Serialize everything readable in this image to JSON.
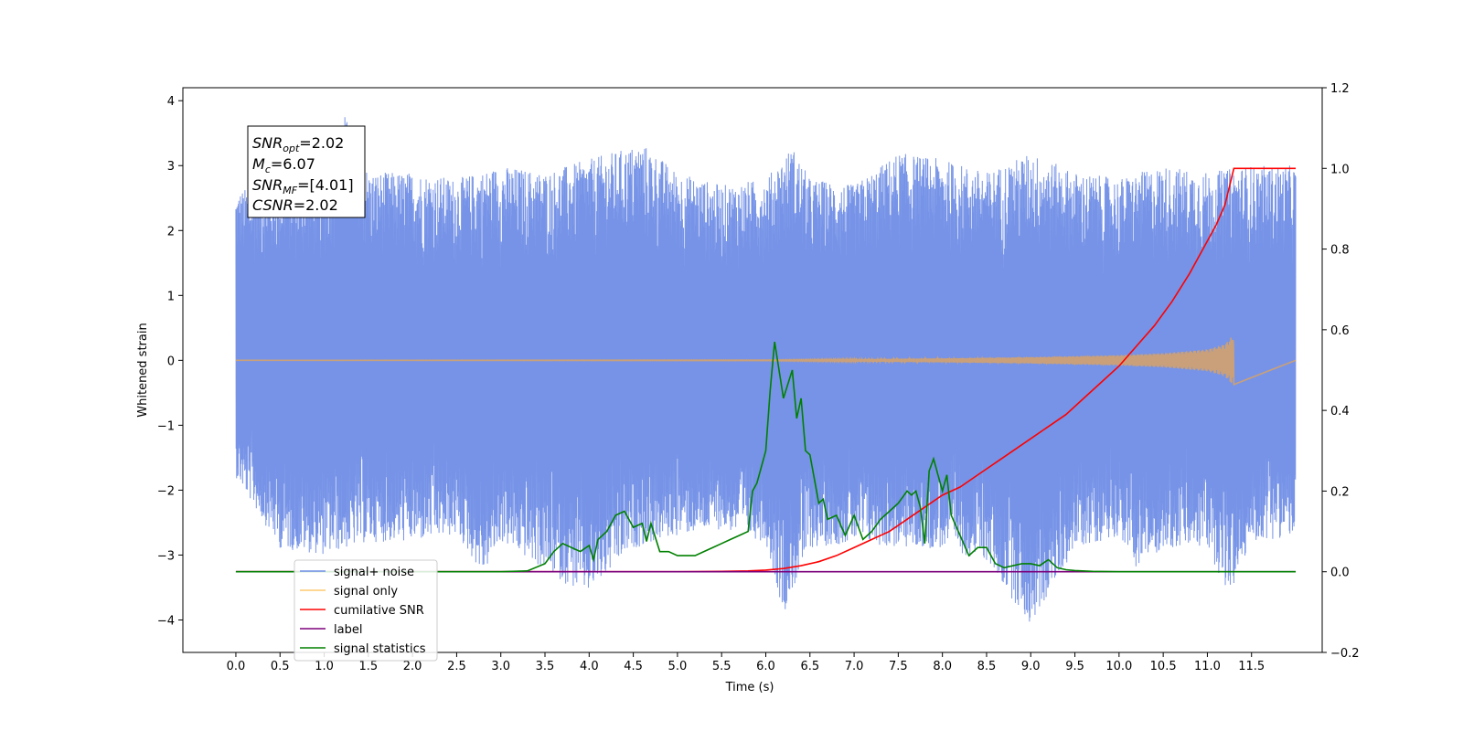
{
  "chart_data": {
    "type": "line",
    "xlabel": "Time (s)",
    "ylabel": "Whitened strain",
    "xlim": [
      -0.6,
      12.3
    ],
    "ylim": [
      -4.5,
      4.2
    ],
    "y2lim": [
      -0.2,
      1.2
    ],
    "xticks": [
      "0.0",
      "0.5",
      "1.0",
      "1.5",
      "2.0",
      "2.5",
      "3.0",
      "3.5",
      "4.0",
      "4.5",
      "5.0",
      "5.5",
      "6.0",
      "6.5",
      "7.0",
      "7.5",
      "8.0",
      "8.5",
      "9.0",
      "9.5",
      "10.0",
      "10.5",
      "11.0",
      "11.5"
    ],
    "yticks": [
      "4",
      "3",
      "2",
      "1",
      "0",
      "−1",
      "−2",
      "−3",
      "−4"
    ],
    "y2ticks": [
      "1.2",
      "1.0",
      "0.8",
      "0.6",
      "0.4",
      "0.2",
      "0.0",
      "−0.2"
    ],
    "annotation": {
      "snr_opt_base": "SNR",
      "snr_opt_sub": "opt",
      "snr_opt_value": "=2.02",
      "mc_base": "M",
      "mc_sub": "c",
      "mc_value": "=6.07",
      "snr_mf_base": "SNR",
      "snr_mf_sub": "MF",
      "snr_mf_value": "=[4.01]",
      "csnr_label": "CSNR",
      "csnr_value": "=2.02"
    },
    "legend": {
      "placement": "lower-left",
      "entries": [
        {
          "label": "signal+ noise",
          "color": "#6f8de6"
        },
        {
          "label": "signal only",
          "color": "#ffc870"
        },
        {
          "label": "cumilative SNR",
          "color": "#ff0000"
        },
        {
          "label": "label",
          "color": "#7b007b"
        },
        {
          "label": "signal statistics",
          "color": "#008000"
        }
      ]
    },
    "series": [
      {
        "name": "signal+ noise",
        "color": "#6f8de6",
        "axis": "left",
        "x_range": [
          0.0,
          12.0
        ],
        "envelope_max": [
          [
            0.0,
            2.6
          ],
          [
            0.5,
            2.8
          ],
          [
            1.0,
            2.9
          ],
          [
            1.23,
            3.8
          ],
          [
            1.5,
            2.9
          ],
          [
            2.0,
            2.9
          ],
          [
            2.5,
            2.8
          ],
          [
            3.0,
            3.0
          ],
          [
            3.5,
            2.9
          ],
          [
            4.0,
            3.1
          ],
          [
            4.5,
            3.3
          ],
          [
            4.6,
            3.35
          ],
          [
            5.0,
            2.9
          ],
          [
            5.5,
            2.7
          ],
          [
            6.0,
            2.8
          ],
          [
            6.3,
            3.3
          ],
          [
            6.5,
            2.8
          ],
          [
            7.0,
            2.7
          ],
          [
            7.5,
            3.2
          ],
          [
            8.0,
            3.1
          ],
          [
            8.5,
            2.9
          ],
          [
            9.0,
            3.2
          ],
          [
            9.5,
            2.9
          ],
          [
            10.0,
            2.8
          ],
          [
            10.5,
            3.0
          ],
          [
            11.0,
            2.9
          ],
          [
            11.5,
            3.0
          ],
          [
            12.0,
            3.0
          ]
        ],
        "envelope_min": [
          [
            0.0,
            -1.8
          ],
          [
            0.5,
            -2.9
          ],
          [
            1.0,
            -3.0
          ],
          [
            1.5,
            -2.8
          ],
          [
            2.0,
            -2.8
          ],
          [
            2.5,
            -2.7
          ],
          [
            2.8,
            -3.3
          ],
          [
            3.0,
            -2.8
          ],
          [
            3.8,
            -3.5
          ],
          [
            4.0,
            -3.6
          ],
          [
            4.5,
            -2.9
          ],
          [
            5.0,
            -2.7
          ],
          [
            5.5,
            -2.6
          ],
          [
            6.0,
            -2.8
          ],
          [
            6.2,
            -3.9
          ],
          [
            6.5,
            -2.9
          ],
          [
            7.0,
            -2.8
          ],
          [
            7.5,
            -2.9
          ],
          [
            8.0,
            -2.9
          ],
          [
            8.5,
            -3.1
          ],
          [
            9.0,
            -4.1
          ],
          [
            9.5,
            -2.9
          ],
          [
            10.0,
            -2.7
          ],
          [
            10.2,
            -3.2
          ],
          [
            10.5,
            -2.9
          ],
          [
            11.0,
            -2.9
          ],
          [
            11.25,
            -3.65
          ],
          [
            11.5,
            -2.8
          ],
          [
            12.0,
            -2.7
          ]
        ]
      },
      {
        "name": "signal only",
        "color": "#c9a07a",
        "axis": "left",
        "x": [
          0,
          6.0,
          8.0,
          9.0,
          10.0,
          10.5,
          11.0,
          11.2,
          11.3
        ],
        "amplitude": [
          0.0,
          0.005,
          0.03,
          0.05,
          0.08,
          0.11,
          0.17,
          0.25,
          0.4
        ]
      },
      {
        "name": "cumilative SNR",
        "color": "#ff0000",
        "axis": "right",
        "x": [
          0,
          5.0,
          5.5,
          5.8,
          6.0,
          6.2,
          6.4,
          6.6,
          6.8,
          7.0,
          7.2,
          7.4,
          7.6,
          7.8,
          8.0,
          8.2,
          8.4,
          8.6,
          8.8,
          9.0,
          9.2,
          9.4,
          9.6,
          9.8,
          10.0,
          10.2,
          10.4,
          10.6,
          10.8,
          11.0,
          11.1,
          11.2,
          11.3,
          12.0
        ],
        "y": [
          0,
          0,
          0.001,
          0.002,
          0.004,
          0.008,
          0.015,
          0.025,
          0.04,
          0.06,
          0.08,
          0.1,
          0.13,
          0.16,
          0.19,
          0.21,
          0.24,
          0.27,
          0.3,
          0.33,
          0.36,
          0.39,
          0.43,
          0.47,
          0.51,
          0.56,
          0.61,
          0.67,
          0.74,
          0.82,
          0.86,
          0.91,
          1.0,
          1.0
        ]
      },
      {
        "name": "label",
        "color": "#7b007b",
        "axis": "right",
        "x": [
          0,
          12.0
        ],
        "y": [
          0,
          0
        ]
      },
      {
        "name": "signal statistics",
        "color": "#008000",
        "axis": "right",
        "x": [
          0,
          3.0,
          3.3,
          3.5,
          3.6,
          3.7,
          3.8,
          3.9,
          4.0,
          4.05,
          4.1,
          4.2,
          4.3,
          4.4,
          4.5,
          4.6,
          4.65,
          4.7,
          4.8,
          4.9,
          5.0,
          5.1,
          5.2,
          5.3,
          5.4,
          5.5,
          5.6,
          5.7,
          5.8,
          5.85,
          5.9,
          6.0,
          6.05,
          6.1,
          6.2,
          6.3,
          6.35,
          6.4,
          6.45,
          6.5,
          6.6,
          6.65,
          6.7,
          6.8,
          6.9,
          7.0,
          7.1,
          7.2,
          7.3,
          7.4,
          7.5,
          7.6,
          7.65,
          7.7,
          7.75,
          7.8,
          7.85,
          7.9,
          8.0,
          8.05,
          8.1,
          8.2,
          8.3,
          8.4,
          8.5,
          8.6,
          8.7,
          8.8,
          8.9,
          9.0,
          9.1,
          9.2,
          9.3,
          9.4,
          9.5,
          9.7,
          10.0,
          12.0
        ],
        "y": [
          0,
          0,
          0.002,
          0.02,
          0.05,
          0.07,
          0.06,
          0.05,
          0.065,
          0.03,
          0.08,
          0.1,
          0.14,
          0.15,
          0.11,
          0.12,
          0.075,
          0.12,
          0.05,
          0.05,
          0.04,
          0.04,
          0.04,
          0.05,
          0.06,
          0.07,
          0.08,
          0.09,
          0.1,
          0.2,
          0.22,
          0.3,
          0.45,
          0.57,
          0.43,
          0.5,
          0.38,
          0.43,
          0.3,
          0.29,
          0.17,
          0.18,
          0.13,
          0.14,
          0.09,
          0.14,
          0.08,
          0.1,
          0.13,
          0.15,
          0.17,
          0.2,
          0.19,
          0.2,
          0.16,
          0.07,
          0.25,
          0.28,
          0.2,
          0.24,
          0.14,
          0.09,
          0.04,
          0.06,
          0.06,
          0.02,
          0.01,
          0.015,
          0.02,
          0.02,
          0.015,
          0.03,
          0.01,
          0.005,
          0.003,
          0.001,
          0,
          0
        ]
      }
    ]
  }
}
